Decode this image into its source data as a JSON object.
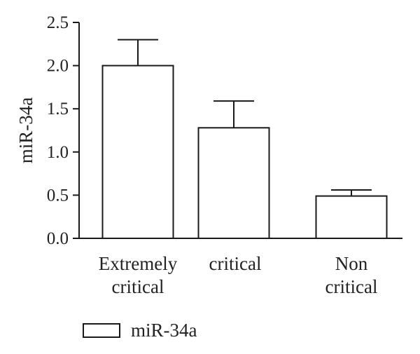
{
  "chart_data": {
    "type": "bar",
    "categories": [
      [
        "Extremely",
        "critical"
      ],
      [
        "critical"
      ],
      [
        "Non",
        "critical"
      ]
    ],
    "series": [
      {
        "name": "miR-34a",
        "values": [
          2.0,
          1.28,
          0.49
        ],
        "error": [
          0.3,
          0.31,
          0.07
        ]
      }
    ],
    "xlabel": "",
    "ylabel": "miR-34a",
    "ylim": [
      0.0,
      2.5
    ],
    "yticks": [
      0.0,
      0.5,
      1.0,
      1.5,
      2.0,
      2.5
    ],
    "ytick_labels": [
      "0.0",
      "0.5",
      "1.0",
      "1.5",
      "2.0",
      "2.5"
    ],
    "grid": false,
    "legend_position": "bottom-left",
    "bar_fill": "#ffffff",
    "bar_stroke": "#1a1a1a",
    "axis_color": "#1a1a1a"
  }
}
